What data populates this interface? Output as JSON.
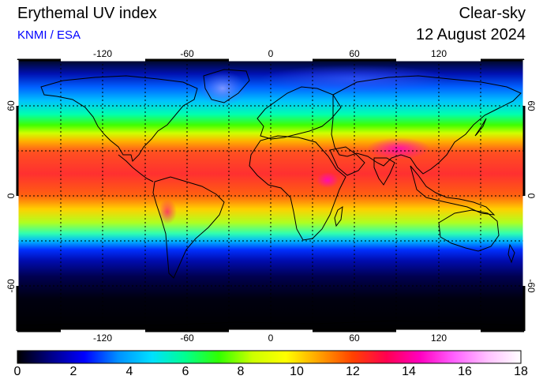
{
  "header": {
    "title": "Erythemal UV index",
    "credit": "KNMI / ESA",
    "sky_type": "Clear-sky",
    "date": "12 August 2024"
  },
  "map": {
    "lon_ticks": [
      "-120",
      "-60",
      "0",
      "60",
      "120"
    ],
    "lat_ticks": [
      "60",
      "0",
      "-60"
    ],
    "lon_range": [
      -180,
      180
    ],
    "lat_range": [
      -90,
      90
    ],
    "grid": "dotted every 30 degrees"
  },
  "colorbar": {
    "labels": [
      "0",
      "2",
      "4",
      "6",
      "8",
      "10",
      "12",
      "14",
      "16",
      "18"
    ],
    "colors": [
      "#000000",
      "#000088",
      "#0000ff",
      "#0090ff",
      "#00e0ff",
      "#00ff90",
      "#30ff00",
      "#ccff00",
      "#ffff00",
      "#ffa000",
      "#ff4000",
      "#ff0050",
      "#ff00c0",
      "#ff60ff",
      "#ffc0ff",
      "#ffffff"
    ]
  }
}
